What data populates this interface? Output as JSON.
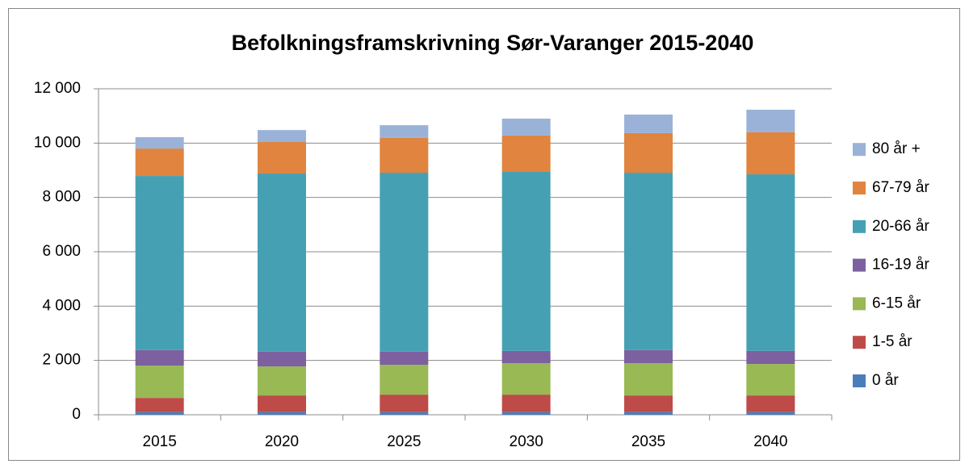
{
  "chart_data": {
    "type": "stacked_bar",
    "title": "Befolkningsframskrivning Sør-Varanger 2015-2040",
    "categories": [
      "2015",
      "2020",
      "2025",
      "2030",
      "2035",
      "2040"
    ],
    "series": [
      {
        "name": "0 år",
        "color": "#4a7ebb",
        "values": [
          100,
          100,
          100,
          100,
          100,
          100
        ]
      },
      {
        "name": "1-5 år",
        "color": "#be4b48",
        "values": [
          520,
          610,
          640,
          640,
          610,
          610
        ]
      },
      {
        "name": "6-15 år",
        "color": "#98b954",
        "values": [
          1190,
          1070,
          1100,
          1160,
          1190,
          1160
        ]
      },
      {
        "name": "16-19 år",
        "color": "#7d60a0",
        "values": [
          570,
          540,
          480,
          450,
          480,
          480
        ]
      },
      {
        "name": "20-66 år",
        "color": "#46a0b4",
        "values": [
          6410,
          6560,
          6590,
          6590,
          6530,
          6500
        ]
      },
      {
        "name": "67-79 år",
        "color": "#e0843f",
        "values": [
          1010,
          1160,
          1280,
          1340,
          1460,
          1550
        ]
      },
      {
        "name": "80 år +",
        "color": "#9bb2d8",
        "values": [
          420,
          440,
          470,
          620,
          680,
          830
        ]
      }
    ],
    "ylim": [
      0,
      12000
    ],
    "yticks": [
      0,
      {
        "value": 2000,
        "label": "2 000"
      },
      {
        "value": 4000,
        "label": "4 000"
      },
      {
        "value": 6000,
        "label": "6 000"
      },
      {
        "value": 8000,
        "label": "8 000"
      },
      {
        "value": 10000,
        "label": "10 000"
      },
      {
        "value": 12000,
        "label": "12 000"
      }
    ],
    "grid": true,
    "legend": "right"
  }
}
